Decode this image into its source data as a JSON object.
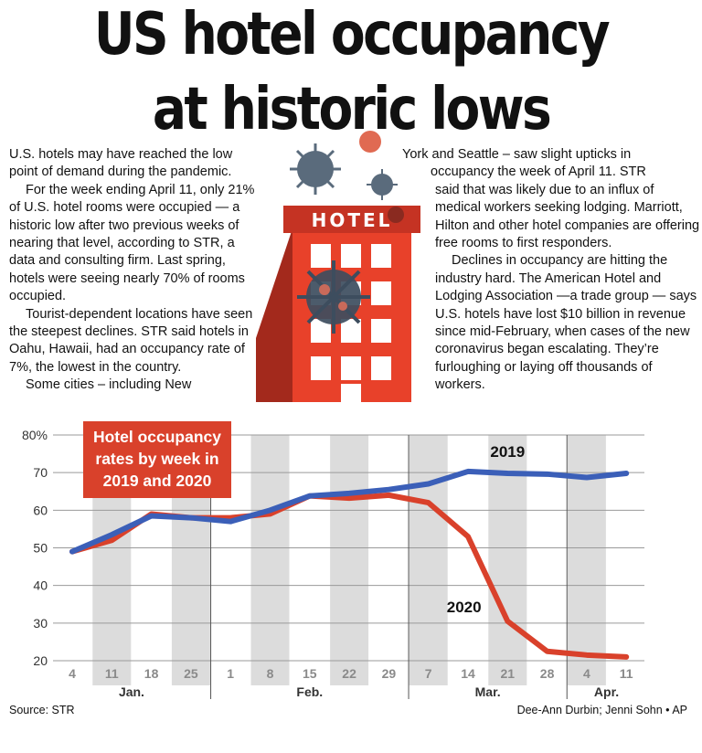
{
  "headline": {
    "line1": "US hotel occupancy",
    "line2": "at historic lows"
  },
  "article": {
    "left_paragraphs": [
      "U.S. hotels may have reached the low point of demand during the pandemic.",
      "For the week ending April 11, only 21% of U.S. hotel rooms were occupied — a historic low after two previous weeks of nearing that level, according to STR, a data and consulting firm. Last spring, hotels were seeing nearly 70% of rooms occupied.",
      "Tourist-dependent locations have seen the steepest declines. STR said hotels in Oahu, Hawaii, had an occupancy rate of 7%, the lowest in the country.",
      "Some cities – including New"
    ],
    "right_wrap_line1": "York and Seattle – saw slight upticks in",
    "right_wrap_line2": "occupancy the week of April 11. STR",
    "right_paragraphs": [
      "said that was likely due to an influx of medical workers seeking lodging. Marriott, Hilton and other hotel companies are offering free rooms to first responders.",
      "Declines in occupancy are hitting the industry hard. The American Hotel and Lodging Association —a trade group — says U.S. hotels have lost $10 billion in revenue since mid-February, when cases of the new coronavirus began escalating. They’re furloughing or laying off thousands of workers."
    ]
  },
  "illustration": {
    "sign_text": "HOTEL"
  },
  "chart_data": {
    "type": "line",
    "title_lines": [
      "Hotel occupancy",
      "rates by week in",
      "2019 and 2020"
    ],
    "x_tick_labels": [
      "4",
      "11",
      "18",
      "25",
      "1",
      "8",
      "15",
      "22",
      "29",
      "7",
      "14",
      "21",
      "28",
      "4",
      "11"
    ],
    "month_labels": [
      {
        "label": "Jan.",
        "center_index": 1.5
      },
      {
        "label": "Feb.",
        "center_index": 6
      },
      {
        "label": "Mar.",
        "center_index": 10.5
      },
      {
        "label": "Apr.",
        "center_index": 13.5
      }
    ],
    "month_boundaries": [
      3.5,
      8.5,
      12.5
    ],
    "y_ticks": [
      20,
      30,
      40,
      50,
      60,
      70,
      80
    ],
    "y_tick_labels": [
      "20",
      "30",
      "40",
      "50",
      "60",
      "70",
      "80%"
    ],
    "ylim": [
      20,
      80
    ],
    "series": [
      {
        "name": "2019",
        "color": "#3b5fb8",
        "values": [
          49,
          53.5,
          58.5,
          58,
          57,
          60,
          63.8,
          64.5,
          65.5,
          67,
          70.3,
          69.8,
          69.6,
          68.7,
          69.8
        ]
      },
      {
        "name": "2020",
        "color": "#d9412b",
        "values": [
          49,
          52,
          59,
          58,
          58,
          59,
          63.8,
          63.2,
          64,
          62,
          53,
          30.5,
          22.5,
          21.5,
          21
        ]
      }
    ],
    "grid": true
  },
  "footer": {
    "source": "Source: STR",
    "credit": "Dee-Ann Durbin; Jenni Sohn • AP"
  }
}
